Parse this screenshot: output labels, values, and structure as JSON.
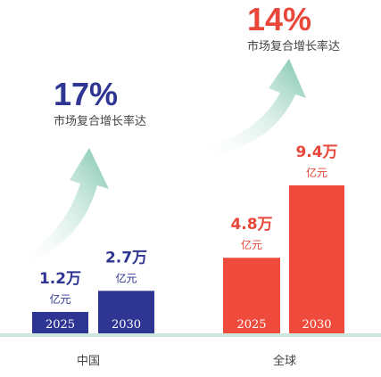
{
  "chart_data": [
    {
      "type": "bar",
      "group_label": "中国",
      "categories": [
        "2025",
        "2030"
      ],
      "values": [
        1.2,
        2.7
      ],
      "value_labels": [
        "1.2万",
        "2.7万"
      ],
      "unit_label": "亿元",
      "cagr_value": "17%",
      "cagr_caption": "市场复合增长率达",
      "bar_color": "#2e3592",
      "value_color": "#2e3592",
      "cagr_color": "#2e3592"
    },
    {
      "type": "bar",
      "group_label": "全球",
      "categories": [
        "2025",
        "2030"
      ],
      "values": [
        4.8,
        9.4
      ],
      "value_labels": [
        "4.8万",
        "9.4万"
      ],
      "unit_label": "亿元",
      "cagr_value": "14%",
      "cagr_caption": "市场复合增长率达",
      "bar_color": "#ef4b3d",
      "value_color": "#e8473a",
      "cagr_color": "#e8473a"
    }
  ],
  "colors": {
    "baseline": "#cfe6df",
    "arrow_start": "#ffffff",
    "arrow_end": "#7cc4ad",
    "caption_text": "#444444",
    "group_text": "#444444"
  },
  "icons": [
    "growth-arrow-icon",
    "growth-arrow-icon"
  ]
}
